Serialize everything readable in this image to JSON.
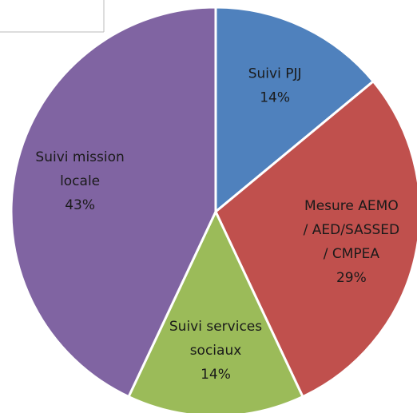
{
  "chart_data": {
    "type": "pie",
    "categories": [
      "Suivi PJJ",
      "Mesure AEMO\n/ AED/SASSED\n/ CMPEA",
      "Suivi services\nsociaux",
      "Suivi mission\nlocale"
    ],
    "values": [
      14,
      29,
      14,
      43
    ],
    "value_labels": [
      "14%",
      "29%",
      "14%",
      "43%"
    ],
    "colors": [
      "#4f81bd",
      "#c0504d",
      "#9bbb59",
      "#8064a2"
    ]
  }
}
